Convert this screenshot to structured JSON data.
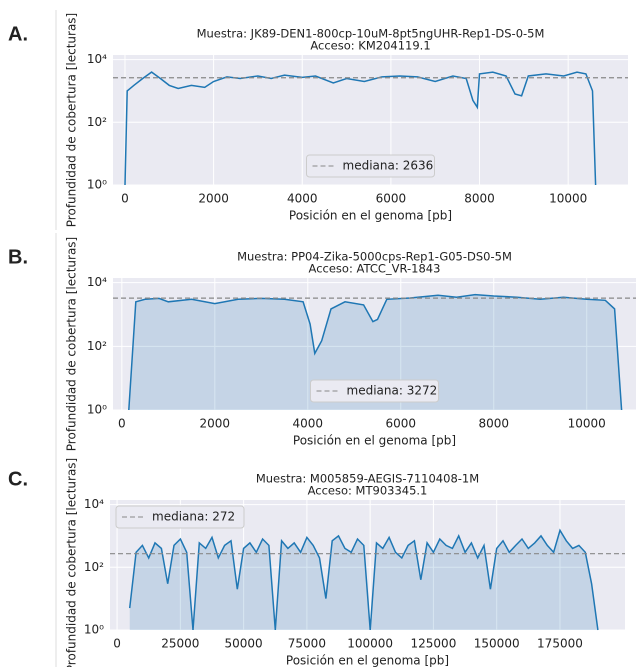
{
  "chart_data": [
    {
      "type": "line",
      "panel": "A.",
      "title": "Muestra: JK89-DEN1-800cp-10uM-8pt5ngUHR-Rep1-DS-0-5M",
      "subtitle": "Acceso: KM204119.1",
      "xlabel": "Posición en el genoma [pb]",
      "ylabel": "Profundidad de cobertura [lecturas]",
      "x": [
        0,
        50,
        200,
        400,
        600,
        800,
        1000,
        1200,
        1500,
        1800,
        2000,
        2300,
        2600,
        3000,
        3300,
        3600,
        4000,
        4300,
        4700,
        5000,
        5400,
        5800,
        6200,
        6600,
        7000,
        7400,
        7700,
        7850,
        7950,
        8000,
        8300,
        8600,
        8800,
        8950,
        9100,
        9500,
        9900,
        10200,
        10400,
        10550,
        10620
      ],
      "values": [
        1,
        1000,
        1500,
        2500,
        4000,
        2500,
        1500,
        1200,
        1500,
        1300,
        2000,
        2800,
        2500,
        3000,
        2500,
        3200,
        2700,
        3000,
        1800,
        2500,
        2000,
        2800,
        3000,
        2800,
        2000,
        3000,
        2500,
        500,
        300,
        3500,
        4000,
        3000,
        800,
        700,
        3000,
        3500,
        3000,
        4000,
        3500,
        1000,
        1
      ],
      "color": "#1f77b4",
      "fill": false,
      "log_y": true,
      "grid": true,
      "xlim": [
        -270,
        11350
      ],
      "ylim": [
        1,
        14000
      ],
      "xticks": [
        0,
        2000,
        4000,
        6000,
        8000,
        10000
      ],
      "yticks": [
        {
          "value": 1,
          "label": "10⁰"
        },
        {
          "value": 100,
          "label": "10²"
        },
        {
          "value": 10000,
          "label": "10⁴"
        }
      ],
      "median": {
        "value": 2636,
        "label": "mediana: 2636"
      },
      "median_color": "#888888",
      "legend": "lower center"
    },
    {
      "type": "line",
      "panel": "B.",
      "title": "Muestra: PP04-Zika-5000cps-Rep1-G05-DS0-5M",
      "subtitle": "Acceso: ATCC_VR-1843",
      "xlabel": "Posición en el genoma [pb]",
      "ylabel": "Profundidad de cobertura [lecturas]",
      "x": [
        150,
        300,
        500,
        800,
        1000,
        1500,
        2000,
        2500,
        3000,
        3500,
        3900,
        4050,
        4150,
        4300,
        4500,
        4800,
        5200,
        5400,
        5500,
        5700,
        6200,
        6800,
        7200,
        7600,
        8000,
        8500,
        9000,
        9500,
        10000,
        10400,
        10600,
        10750
      ],
      "values": [
        1,
        2500,
        3000,
        3200,
        2500,
        3000,
        2200,
        3000,
        3200,
        3000,
        2500,
        500,
        60,
        150,
        1500,
        2500,
        2000,
        600,
        700,
        3000,
        3300,
        4000,
        3500,
        4200,
        3800,
        3500,
        3000,
        3500,
        3000,
        2800,
        1500,
        1
      ],
      "color": "#1f77b4",
      "fill": true,
      "log_y": true,
      "grid": true,
      "xlim": [
        -190,
        11060
      ],
      "ylim": [
        1,
        14000
      ],
      "xticks": [
        0,
        2000,
        4000,
        6000,
        8000,
        10000
      ],
      "yticks": [
        {
          "value": 1,
          "label": "10⁰"
        },
        {
          "value": 100,
          "label": "10²"
        },
        {
          "value": 10000,
          "label": "10⁴"
        }
      ],
      "median": {
        "value": 3272,
        "label": "mediana: 3272"
      },
      "median_color": "#888888",
      "legend": "lower center"
    },
    {
      "type": "line",
      "panel": "C.",
      "title": "Muestra: M005859-AEGIS-7110408-1M",
      "subtitle": "Acceso: MT903345.1",
      "xlabel": "Posición en el genoma [pb]",
      "ylabel": "Profundidad de cobertura [lecturas]",
      "x": [
        5000,
        7500,
        10000,
        12500,
        15000,
        17500,
        20000,
        22500,
        25000,
        27500,
        30000,
        32500,
        35000,
        37500,
        40000,
        42500,
        45000,
        47500,
        50000,
        52500,
        55000,
        57500,
        60000,
        62500,
        65000,
        67500,
        70000,
        72500,
        75000,
        77500,
        80000,
        82500,
        85000,
        87500,
        90000,
        92500,
        95000,
        97500,
        100000,
        102500,
        105000,
        107500,
        110000,
        112500,
        115000,
        117500,
        120000,
        122500,
        125000,
        127500,
        130000,
        132500,
        135000,
        137500,
        140000,
        142500,
        145000,
        147500,
        150000,
        152500,
        155000,
        157500,
        160000,
        162500,
        165000,
        167500,
        170000,
        172500,
        175000,
        177500,
        180000,
        182500,
        185000,
        187500,
        190000
      ],
      "values": [
        5,
        300,
        500,
        200,
        600,
        400,
        30,
        500,
        800,
        300,
        1,
        600,
        400,
        900,
        200,
        500,
        700,
        20,
        400,
        600,
        300,
        800,
        500,
        1,
        700,
        400,
        600,
        300,
        900,
        500,
        200,
        10,
        700,
        1000,
        400,
        300,
        800,
        500,
        1,
        600,
        400,
        900,
        300,
        200,
        500,
        700,
        40,
        600,
        300,
        800,
        500,
        400,
        1000,
        300,
        600,
        200,
        500,
        20,
        400,
        700,
        300,
        500,
        800,
        400,
        600,
        1000,
        500,
        300,
        1500,
        700,
        400,
        500,
        300,
        30,
        1
      ],
      "color": "#1f77b4",
      "fill": true,
      "log_y": true,
      "grid": true,
      "xlim": [
        -2800,
        200700
      ],
      "ylim": [
        1,
        14000
      ],
      "xticks": [
        0,
        25000,
        50000,
        75000,
        100000,
        125000,
        150000,
        175000
      ],
      "yticks": [
        {
          "value": 1,
          "label": "10⁰"
        },
        {
          "value": 100,
          "label": "10²"
        },
        {
          "value": 10000,
          "label": "10⁴"
        }
      ],
      "median": {
        "value": 272,
        "label": "mediana: 272"
      },
      "median_color": "#888888",
      "legend": "upper left"
    }
  ]
}
